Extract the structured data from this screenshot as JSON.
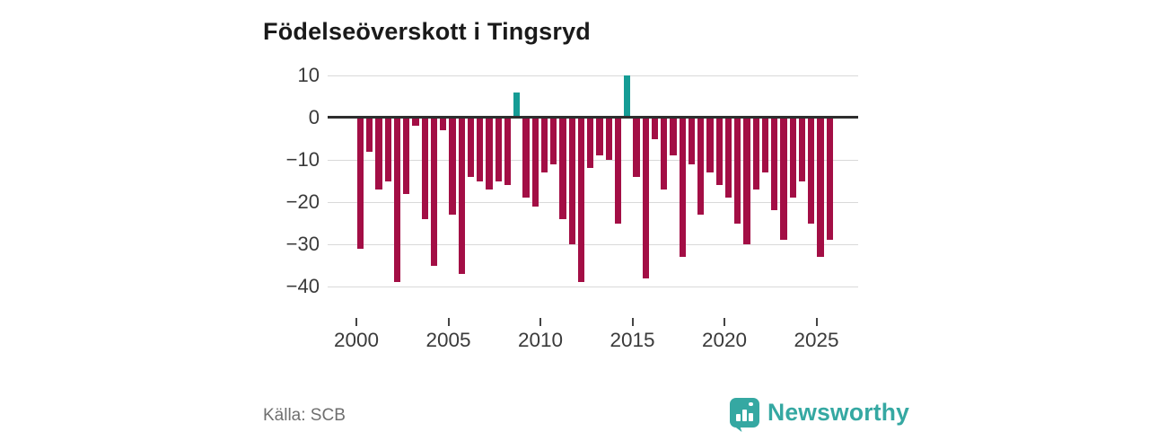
{
  "header": {
    "title": "Födelseöverskott i Tingsryd"
  },
  "footer": {
    "source_label": "Källa: SCB",
    "brand_name": "Newsworthy"
  },
  "colors": {
    "negative_bar": "#a30e45",
    "positive_bar": "#159c95",
    "brand_teal": "#35a8a2",
    "gridline": "#d9d9d9",
    "zero_line": "#2e2e2e",
    "axis_text": "#3a3a3a",
    "source_text": "#6f6f6f",
    "title_text": "#1a1a1a"
  },
  "chart_data": {
    "type": "bar",
    "title": "Födelseöverskott i Tingsryd",
    "subtitle": "",
    "xlabel": "",
    "ylabel": "",
    "x_unit": "half-year",
    "grid": "horizontal",
    "legend": "none",
    "ylim": [
      -45,
      12
    ],
    "categories": [
      "2000H1",
      "2000H2",
      "2001H1",
      "2001H2",
      "2002H1",
      "2002H2",
      "2003H1",
      "2003H2",
      "2004H1",
      "2004H2",
      "2005H1",
      "2005H2",
      "2006H1",
      "2006H2",
      "2007H1",
      "2007H2",
      "2008H1",
      "2008H2",
      "2009H1",
      "2009H2",
      "2010H1",
      "2010H2",
      "2011H1",
      "2011H2",
      "2012H1",
      "2012H2",
      "2013H1",
      "2013H2",
      "2014H1",
      "2014H2",
      "2015H1",
      "2015H2",
      "2016H1",
      "2016H2",
      "2017H1",
      "2017H2",
      "2018H1",
      "2018H2",
      "2019H1",
      "2019H2",
      "2020H1",
      "2020H2",
      "2021H1",
      "2021H2",
      "2022H1",
      "2022H2",
      "2023H1",
      "2023H2",
      "2024H1",
      "2024H2",
      "2025H1",
      "2025H2"
    ],
    "values": [
      -31,
      -8,
      -17,
      -15,
      -39,
      -18,
      -2,
      -24,
      -35,
      -3,
      -23,
      -37,
      -14,
      -15,
      -17,
      -15,
      -16,
      6,
      -19,
      -21,
      -13,
      -11,
      -24,
      -30,
      -39,
      -12,
      -9,
      -10,
      -25,
      10,
      -14,
      -38,
      -5,
      -17,
      -9,
      -33,
      -11,
      -23,
      -13,
      -16,
      -19,
      -25,
      -30,
      -17,
      -13,
      -22,
      -29,
      -19,
      -15,
      -25,
      -33,
      -29
    ],
    "yticks": [
      {
        "label": "10",
        "value": 10
      },
      {
        "label": "0",
        "value": 0
      },
      {
        "label": "−10",
        "value": -10
      },
      {
        "label": "−20",
        "value": -20
      },
      {
        "label": "−30",
        "value": -30
      },
      {
        "label": "−40",
        "value": -40
      }
    ],
    "xticks": [
      {
        "label": "2000",
        "year": 2000
      },
      {
        "label": "2005",
        "year": 2005
      },
      {
        "label": "2010",
        "year": 2010
      },
      {
        "label": "2015",
        "year": 2015
      },
      {
        "label": "2020",
        "year": 2020
      },
      {
        "label": "2025",
        "year": 2025
      }
    ]
  }
}
